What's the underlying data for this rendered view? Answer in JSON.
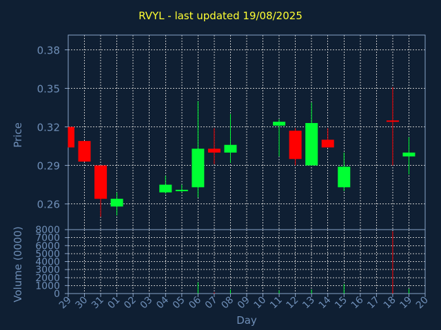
{
  "chart_data": {
    "type": "candlestick",
    "title": "RVYL - last updated 19/08/2025",
    "xlabel": "Day",
    "ylabel_price": "Price",
    "ylabel_volume": "Volume (0000)",
    "x_ticks": [
      "29",
      "30",
      "31",
      "01",
      "02",
      "03",
      "04",
      "05",
      "06",
      "07",
      "08",
      "09",
      "10",
      "11",
      "12",
      "13",
      "14",
      "15",
      "16",
      "17",
      "18",
      "19",
      "20"
    ],
    "price_ticks": [
      0.26,
      0.29,
      0.32,
      0.35,
      0.38
    ],
    "price_tick_labels": [
      "0.26",
      "0.29",
      "0.32",
      "0.35",
      "0.38"
    ],
    "price_ylim": [
      0.24,
      0.3915
    ],
    "volume_ticks": [
      0,
      1000,
      2000,
      3000,
      4000,
      5000,
      6000,
      7000,
      8000
    ],
    "volume_tick_labels": [
      "0",
      "1000",
      "2000",
      "3000",
      "4000",
      "5000",
      "6000",
      "7000",
      "8000"
    ],
    "volume_ylim": [
      0,
      8000
    ],
    "grid": true,
    "colors": {
      "background": "#0f1f33",
      "axis": "#8aa4c8",
      "grid": "#c8c8c8",
      "title": "#ffff33",
      "label": "#6f8fb8",
      "up": "#00ff33",
      "down": "#ff0000"
    },
    "candles": [
      {
        "day": "29",
        "open": 0.32,
        "high": 0.32,
        "low": 0.304,
        "close": 0.304
      },
      {
        "day": "30",
        "open": 0.309,
        "high": 0.309,
        "low": 0.293,
        "close": 0.293
      },
      {
        "day": "31",
        "open": 0.29,
        "high": 0.29,
        "low": 0.25,
        "close": 0.264
      },
      {
        "day": "01",
        "open": 0.258,
        "high": 0.269,
        "low": 0.251,
        "close": 0.264
      },
      {
        "day": "04",
        "open": 0.269,
        "high": 0.282,
        "low": 0.268,
        "close": 0.275
      },
      {
        "day": "05",
        "open": 0.27,
        "high": 0.275,
        "low": 0.269,
        "close": 0.271
      },
      {
        "day": "06",
        "open": 0.273,
        "high": 0.34,
        "low": 0.265,
        "close": 0.303
      },
      {
        "day": "07",
        "open": 0.303,
        "high": 0.319,
        "low": 0.291,
        "close": 0.3
      },
      {
        "day": "08",
        "open": 0.3,
        "high": 0.33,
        "low": 0.292,
        "close": 0.306
      },
      {
        "day": "11",
        "open": 0.321,
        "high": 0.326,
        "low": 0.297,
        "close": 0.324
      },
      {
        "day": "12",
        "open": 0.317,
        "high": 0.319,
        "low": 0.29,
        "close": 0.295
      },
      {
        "day": "13",
        "open": 0.29,
        "high": 0.339,
        "low": 0.29,
        "close": 0.323
      },
      {
        "day": "14",
        "open": 0.31,
        "high": 0.319,
        "low": 0.304,
        "close": 0.304
      },
      {
        "day": "15",
        "open": 0.273,
        "high": 0.3,
        "low": 0.27,
        "close": 0.289
      },
      {
        "day": "18",
        "open": 0.325,
        "high": 0.351,
        "low": 0.29,
        "close": 0.324
      },
      {
        "day": "19",
        "open": 0.297,
        "high": 0.312,
        "low": 0.283,
        "close": 0.3
      }
    ],
    "volume": [
      {
        "day": "06",
        "value": 1400,
        "dir": "up"
      },
      {
        "day": "07",
        "value": 150,
        "dir": "down"
      },
      {
        "day": "08",
        "value": 500,
        "dir": "up"
      },
      {
        "day": "11",
        "value": 400,
        "dir": "up"
      },
      {
        "day": "13",
        "value": 500,
        "dir": "up"
      },
      {
        "day": "15",
        "value": 1200,
        "dir": "up"
      },
      {
        "day": "18",
        "value": 7800,
        "dir": "down"
      },
      {
        "day": "19",
        "value": 600,
        "dir": "up"
      }
    ]
  }
}
